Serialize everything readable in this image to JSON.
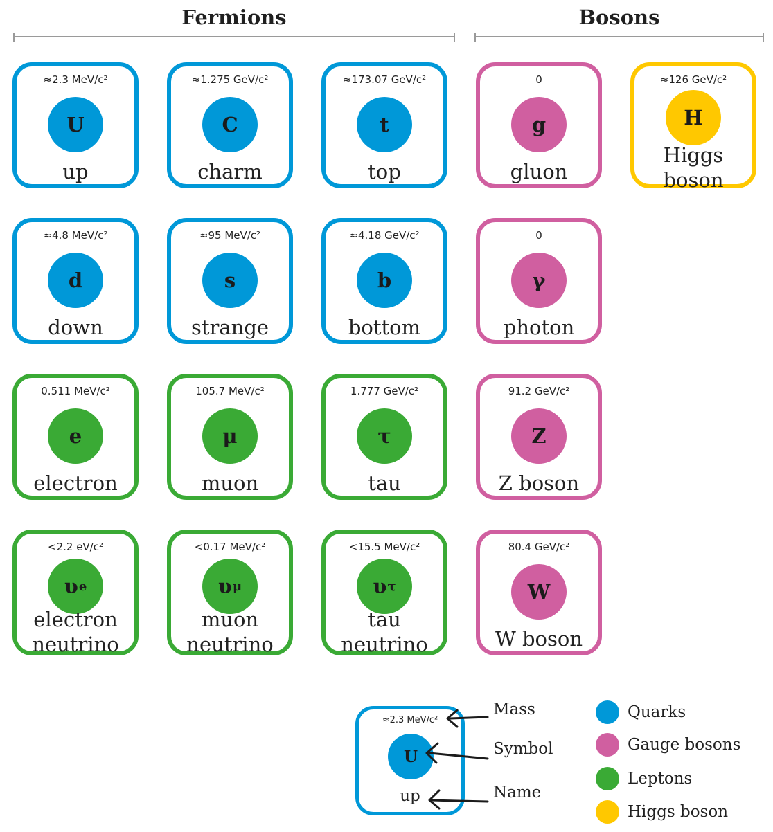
{
  "headers": {
    "fermions": "Fermions",
    "bosons": "Bosons"
  },
  "colors": {
    "quark": "#0098d8",
    "gauge": "#d05fa0",
    "lepton": "#3aaa35",
    "higgs": "#ffc800"
  },
  "particles": {
    "up": {
      "mass": "≈2.3 MeV/c²",
      "symbol": "U",
      "name": "up"
    },
    "charm": {
      "mass": "≈1.275 GeV/c²",
      "symbol": "C",
      "name": "charm"
    },
    "top": {
      "mass": "≈173.07 GeV/c²",
      "symbol": "t",
      "name": "top"
    },
    "gluon": {
      "mass": "0",
      "symbol": "g",
      "name": "gluon"
    },
    "higgs": {
      "mass": "≈126 GeV/c²",
      "symbol": "H",
      "name_line1": "Higgs",
      "name_line2": "boson"
    },
    "down": {
      "mass": "≈4.8 MeV/c²",
      "symbol": "d",
      "name": "down"
    },
    "strange": {
      "mass": "≈95 MeV/c²",
      "symbol": "s",
      "name": "strange"
    },
    "bottom": {
      "mass": "≈4.18 GeV/c²",
      "symbol": "b",
      "name": "bottom"
    },
    "photon": {
      "mass": "0",
      "symbol": "γ",
      "name": "photon"
    },
    "electron": {
      "mass": "0.511 MeV/c²",
      "symbol": "e",
      "name": "electron"
    },
    "muon": {
      "mass": "105.7 MeV/c²",
      "symbol": "μ",
      "name": "muon"
    },
    "tau": {
      "mass": "1.777 GeV/c²",
      "symbol": "τ",
      "name": "tau"
    },
    "zboson": {
      "mass": "91.2 GeV/c²",
      "symbol": "Z",
      "name": "Z boson"
    },
    "enu": {
      "mass": "<2.2 eV/c²",
      "symbol": "υ",
      "symbol_sub": "e",
      "name_line1": "electron",
      "name_line2": "neutrino"
    },
    "munu": {
      "mass": "<0.17 MeV/c²",
      "symbol": "υ",
      "symbol_sub": "μ",
      "name_line1": "muon",
      "name_line2": "neutrino"
    },
    "taunu": {
      "mass": "<15.5 MeV/c²",
      "symbol": "υ",
      "symbol_sub": "τ",
      "name_line1": "tau",
      "name_line2": "neutrino"
    },
    "wboson": {
      "mass": "80.4 GeV/c²",
      "symbol": "W",
      "name": "W boson"
    }
  },
  "key": {
    "mass": "≈2.3 MeV/c²",
    "symbol": "U",
    "name": "up",
    "label_mass": "Mass",
    "label_symbol": "Symbol",
    "label_name": "Name"
  },
  "legend": [
    {
      "label": "Quarks",
      "color": "#0098d8"
    },
    {
      "label": "Gauge bosons",
      "color": "#d05fa0"
    },
    {
      "label": "Leptons",
      "color": "#3aaa35"
    },
    {
      "label": "Higgs boson",
      "color": "#ffc800"
    }
  ]
}
